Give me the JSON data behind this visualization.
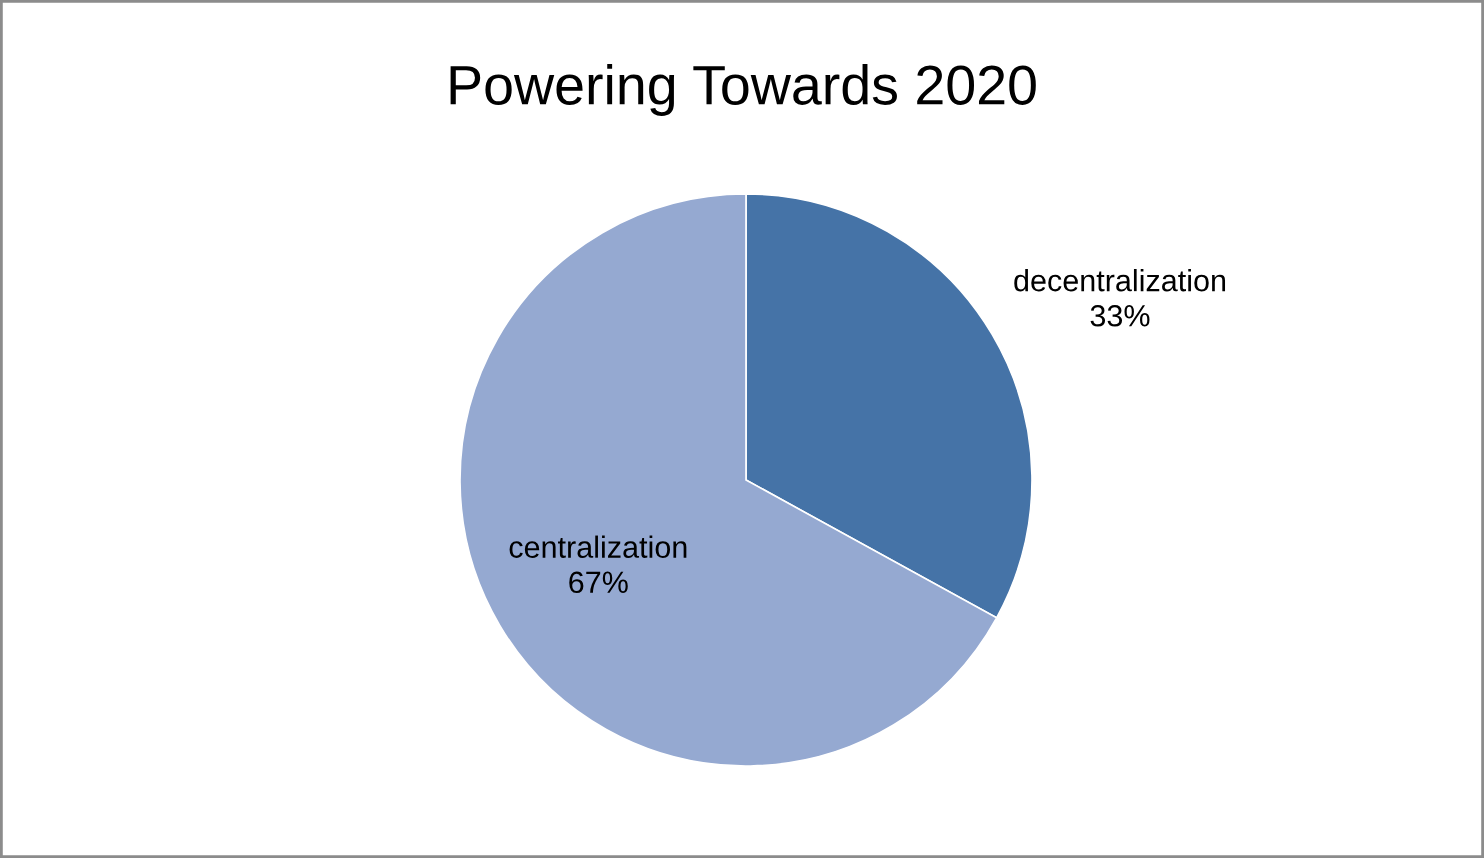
{
  "chart_data": {
    "type": "pie",
    "title": "Powering Towards 2020",
    "categories": [
      "decentralization",
      "centralization"
    ],
    "values": [
      33,
      67
    ],
    "value_labels": [
      "33%",
      "67%"
    ],
    "colors": [
      "#4573a7",
      "#95a9d1"
    ],
    "legend": false
  }
}
